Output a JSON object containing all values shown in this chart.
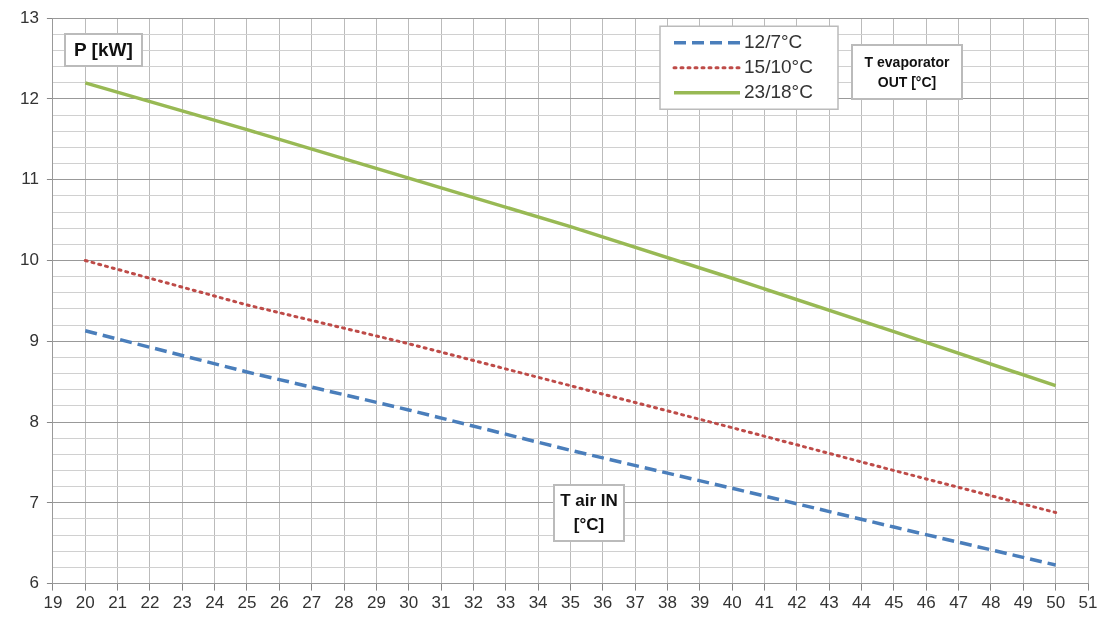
{
  "chart_data": {
    "type": "line",
    "xlabel": "T air IN [°C]",
    "ylabel": "P [kW]",
    "legend_title": "T evaporator OUT [°C]",
    "xlim": [
      19,
      51
    ],
    "xticks": [
      19,
      20,
      21,
      22,
      23,
      24,
      25,
      26,
      27,
      28,
      29,
      30,
      31,
      32,
      33,
      34,
      35,
      36,
      37,
      38,
      39,
      40,
      41,
      42,
      43,
      44,
      45,
      46,
      47,
      48,
      49,
      50,
      51
    ],
    "ylim": [
      6,
      13
    ],
    "yticks": [
      6,
      {
        "value": 6.2,
        "label": null
      },
      {
        "value": 6.4,
        "label": null
      },
      {
        "value": 6.6,
        "label": null
      },
      {
        "value": 6.8,
        "label": null
      },
      7,
      {
        "value": 7.2,
        "label": null
      },
      {
        "value": 7.4,
        "label": null
      },
      {
        "value": 7.6,
        "label": null
      },
      {
        "value": 7.8,
        "label": null
      },
      8,
      {
        "value": 8.2,
        "label": null
      },
      {
        "value": 8.4,
        "label": null
      },
      {
        "value": 8.6,
        "label": null
      },
      {
        "value": 8.8,
        "label": null
      },
      9,
      {
        "value": 9.2,
        "label": null
      },
      {
        "value": 9.4,
        "label": null
      },
      {
        "value": 9.6,
        "label": null
      },
      {
        "value": 9.8,
        "label": null
      },
      10,
      {
        "value": 10.2,
        "label": null
      },
      {
        "value": 10.4,
        "label": null
      },
      {
        "value": 10.6,
        "label": null
      },
      {
        "value": 10.8,
        "label": null
      },
      11,
      {
        "value": 11.2,
        "label": null
      },
      {
        "value": 11.4,
        "label": null
      },
      {
        "value": 11.6,
        "label": null
      },
      {
        "value": 11.8,
        "label": null
      },
      12,
      {
        "value": 12.2,
        "label": null
      },
      {
        "value": 12.4,
        "label": null
      },
      {
        "value": 12.6,
        "label": null
      },
      {
        "value": 12.8,
        "label": null
      },
      13
    ],
    "grid": true,
    "legend": "top right",
    "marker": "none",
    "series": [
      {
        "name": "12/7°C",
        "color": "#4a7ebb",
        "line_style": "dashed",
        "x": [
          20,
          25,
          30,
          35,
          40,
          45,
          50
        ],
        "values": [
          9.13,
          8.62,
          8.15,
          7.65,
          7.18,
          6.7,
          6.23
        ]
      },
      {
        "name": "15/10°C",
        "color": "#be4b48",
        "line_style": "dotted",
        "x": [
          20,
          25,
          30,
          35,
          40,
          45,
          50
        ],
        "values": [
          10.0,
          9.45,
          8.97,
          8.45,
          7.93,
          7.4,
          6.88
        ]
      },
      {
        "name": "23/18°C",
        "color": "#98b954",
        "line_style": "solid",
        "x": [
          20,
          25,
          30,
          35,
          40,
          45,
          50
        ],
        "values": [
          12.2,
          11.62,
          11.02,
          10.42,
          9.78,
          9.12,
          8.45
        ]
      }
    ]
  }
}
